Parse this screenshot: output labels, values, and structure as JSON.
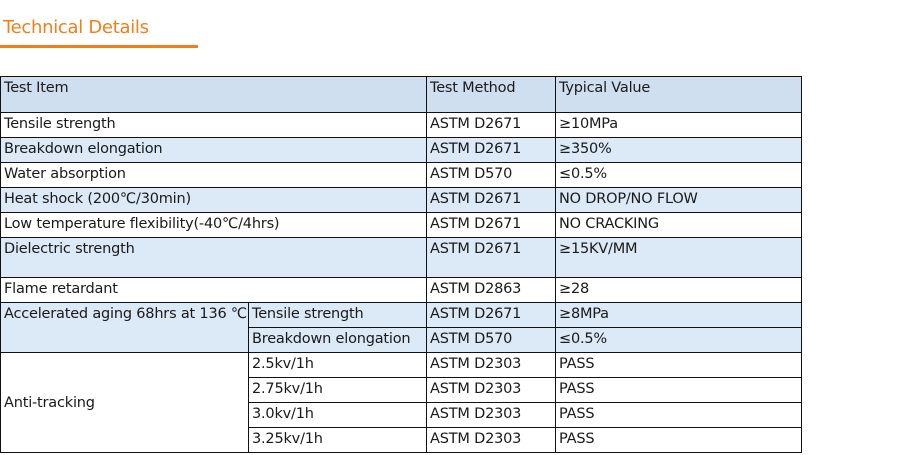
{
  "page_title": "Technical Details",
  "headers": [
    "Test Item",
    "Test Method",
    "Typical Value"
  ],
  "rows": [
    {
      "item": "Tensile strength",
      "method": "ASTM D2671",
      "value": "≥10MPa"
    },
    {
      "item": "Breakdown elongation",
      "method": "ASTM D2671",
      "value": "≥350%"
    },
    {
      "item": "Water absorption",
      "method": "ASTM D570",
      "value": "≤0.5%"
    },
    {
      "item": "Heat shock (200℃/30min)",
      "method": "ASTM D2671",
      "value": "NO DROP/NO FLOW"
    },
    {
      "item": "Low temperature flexibility(-40℃/4hrs)",
      "method": "ASTM D2671",
      "value": "NO CRACKING"
    },
    {
      "item": "Dielectric strength",
      "method": "ASTM D2671",
      "value": "≥15KV/MM"
    },
    {
      "item": "Flame retardant",
      "method": "ASTM D2863",
      "value": "≥28"
    }
  ],
  "aging": {
    "label": "Accelerated aging 68hrs at 136 ℃",
    "sub": [
      {
        "item": "Tensile strength",
        "method": "ASTM D2671",
        "value": "≥8MPa"
      },
      {
        "item": "Breakdown elongation",
        "method": "ASTM D570",
        "value": "≤0.5%"
      }
    ]
  },
  "tracking": {
    "label": "Anti-tracking",
    "sub": [
      {
        "item": "2.5kv/1h",
        "method": "ASTM D2303",
        "value": "PASS"
      },
      {
        "item": "2.75kv/1h",
        "method": "ASTM D2303",
        "value": "PASS"
      },
      {
        "item": "3.0kv/1h",
        "method": "ASTM D2303",
        "value": "PASS"
      },
      {
        "item": "3.25kv/1h",
        "method": "ASTM D2303",
        "value": "PASS"
      }
    ]
  },
  "colors": {
    "accent": "#f07f1b",
    "header_bg": "#cfdff0",
    "row_alt_bg": "#dce9f7"
  }
}
